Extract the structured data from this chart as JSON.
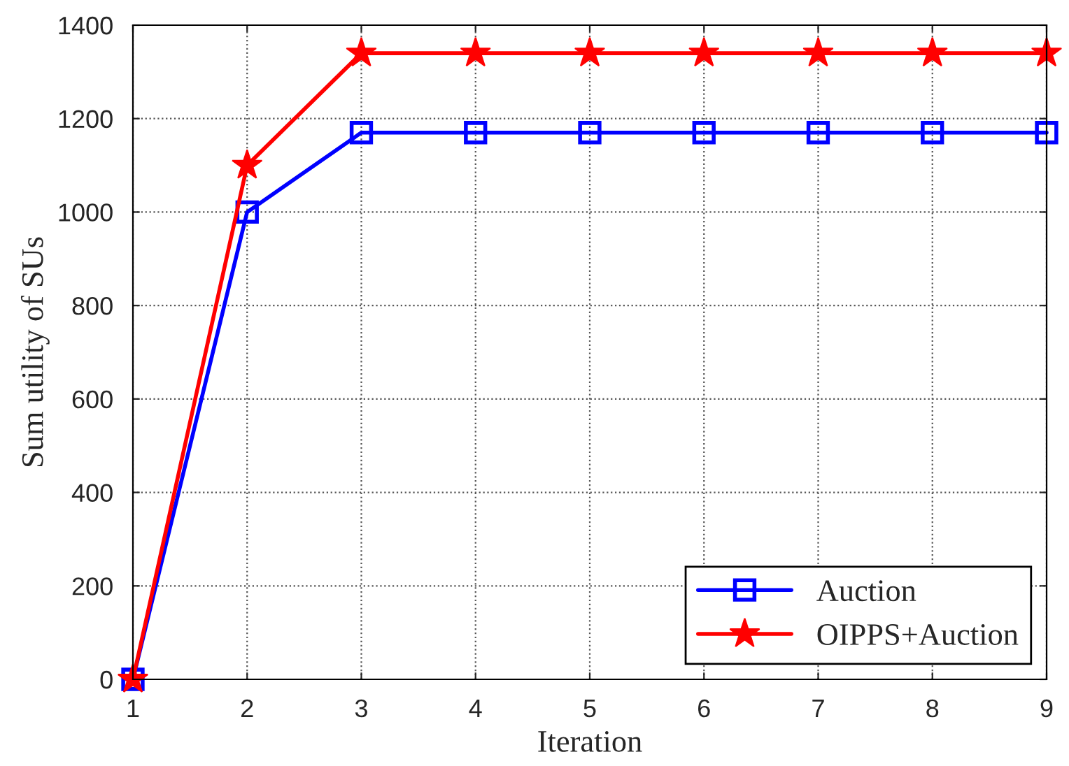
{
  "chart_data": {
    "type": "line",
    "xlabel": "Iteration",
    "ylabel": "Sum utility of SUs",
    "x": [
      1,
      2,
      3,
      4,
      5,
      6,
      7,
      8,
      9
    ],
    "series": [
      {
        "name": "Auction",
        "color": "#0000ff",
        "marker": "square",
        "values": [
          0,
          1000,
          1170,
          1170,
          1170,
          1170,
          1170,
          1170,
          1170
        ]
      },
      {
        "name": "OIPPS+Auction",
        "color": "#ff0000",
        "marker": "star",
        "values": [
          0,
          1100,
          1340,
          1340,
          1340,
          1340,
          1340,
          1340,
          1340
        ]
      }
    ],
    "xlim": [
      1,
      9
    ],
    "xticks": [
      1,
      2,
      3,
      4,
      5,
      6,
      7,
      8,
      9
    ],
    "ylim": [
      0,
      1400
    ],
    "yticks": [
      0,
      200,
      400,
      600,
      800,
      1000,
      1200,
      1400
    ],
    "grid": true,
    "legend": "bottom right",
    "line_style": "solid"
  }
}
